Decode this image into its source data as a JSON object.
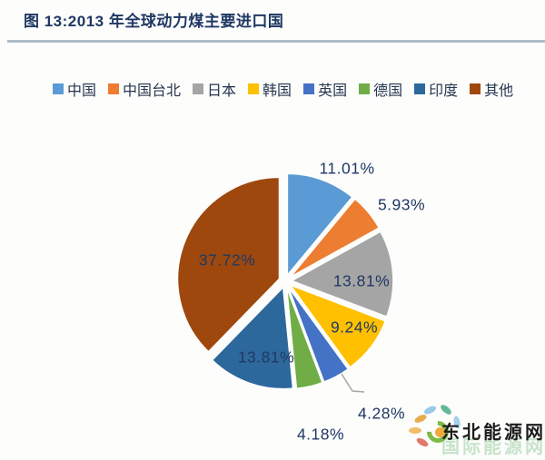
{
  "chart_data": {
    "type": "pie",
    "title": "图 13:2013 年全球动力煤主要进口国",
    "categories": [
      "中国",
      "中国台北",
      "日本",
      "韩国",
      "英国",
      "德国",
      "印度",
      "其他"
    ],
    "values": [
      11.01,
      5.93,
      13.81,
      9.24,
      4.28,
      4.18,
      13.81,
      37.72
    ],
    "unit": "%",
    "labels": [
      "11.01%",
      "5.93%",
      "13.81%",
      "9.24%",
      "4.28%",
      "4.18%",
      "13.81%",
      "37.72%"
    ],
    "colors": [
      "#5B9BD5",
      "#ED7D31",
      "#A5A5A5",
      "#FFC000",
      "#4472C4",
      "#70AD47",
      "#2D689C",
      "#9E480E"
    ],
    "legend_position": "top",
    "start_angle_deg": 0,
    "direction": "clockwise",
    "exploded": true,
    "label_placement": [
      "outside",
      "outside",
      "inside",
      "inside",
      "outside-leader",
      "outside",
      "inside",
      "inside"
    ],
    "label_color": "#1F3864"
  },
  "watermark": {
    "text": "东北能源网",
    "back_text": "国际能源网"
  }
}
